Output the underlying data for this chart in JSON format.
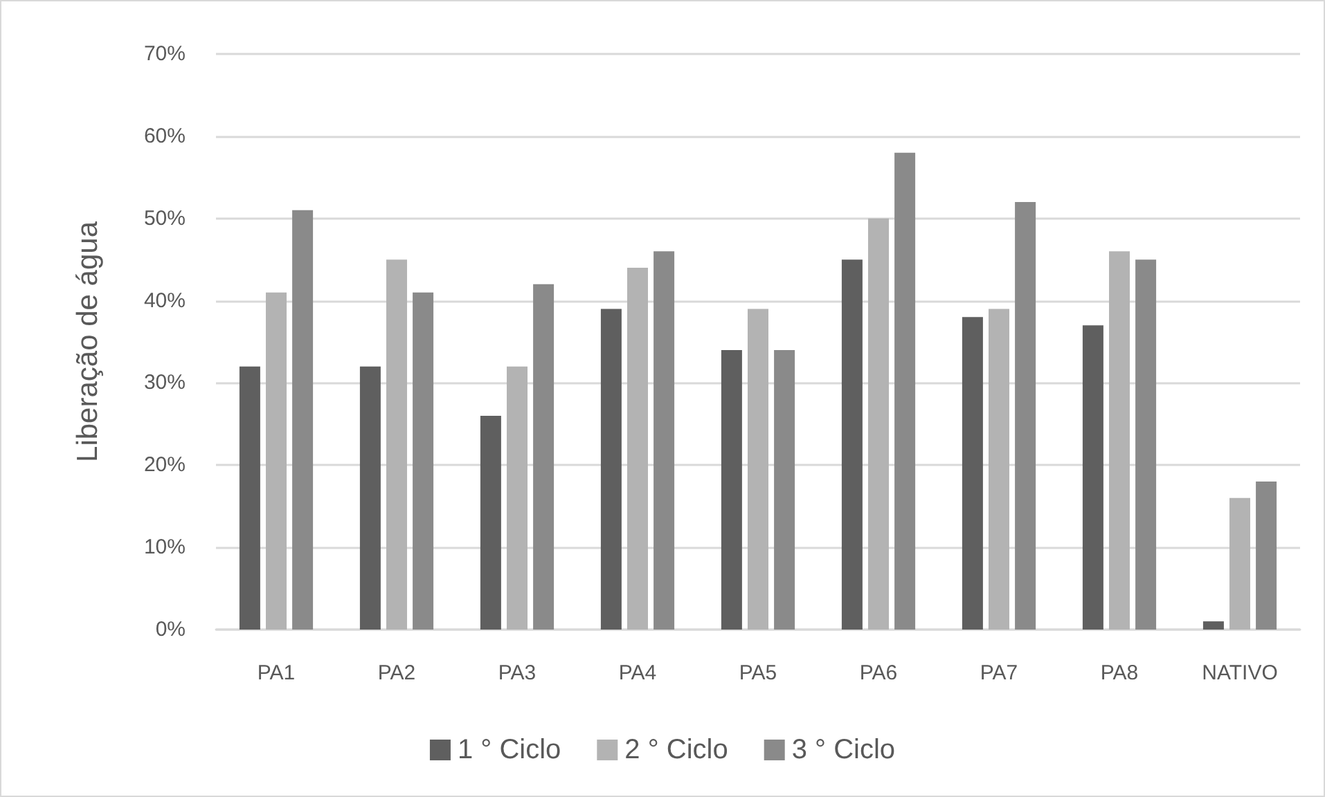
{
  "chart_data": {
    "type": "bar",
    "ylabel": "Liberação de água",
    "categories": [
      "PA1",
      "PA2",
      "PA3",
      "PA4",
      "PA5",
      "PA6",
      "PA7",
      "PA8",
      "NATIVO"
    ],
    "series": [
      {
        "name": "1 ° Ciclo",
        "color": "#5f5f5f",
        "values": [
          32,
          32,
          26,
          39,
          34,
          45,
          38,
          37,
          1
        ]
      },
      {
        "name": "2 ° Ciclo",
        "color": "#b3b3b3",
        "values": [
          41,
          45,
          32,
          44,
          39,
          50,
          39,
          46,
          16
        ]
      },
      {
        "name": "3 ° Ciclo",
        "color": "#8a8a8a",
        "values": [
          51,
          41,
          42,
          46,
          34,
          58,
          52,
          45,
          18
        ]
      }
    ],
    "ylim": [
      0,
      70
    ],
    "yticks": [
      {
        "value": 0,
        "label": "0%"
      },
      {
        "value": 10,
        "label": "10%"
      },
      {
        "value": 20,
        "label": "20%"
      },
      {
        "value": 30,
        "label": "30%"
      },
      {
        "value": 40,
        "label": "40%"
      },
      {
        "value": 50,
        "label": "50%"
      },
      {
        "value": 60,
        "label": "60%"
      },
      {
        "value": 70,
        "label": "70%"
      }
    ],
    "grid": "y",
    "legend": "bottom"
  }
}
